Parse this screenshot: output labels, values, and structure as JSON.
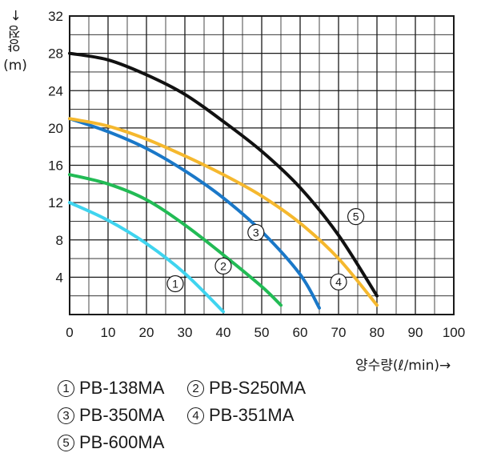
{
  "chart_data": {
    "type": "line",
    "xlabel": "양수량(ℓ/min)→",
    "ylabel_main": "양정 ←",
    "ylabel_unit": "(m)",
    "xlim": [
      0,
      100
    ],
    "ylim": [
      0,
      32
    ],
    "x_ticks": [
      "0",
      "10",
      "20",
      "30",
      "40",
      "50",
      "60",
      "70",
      "80",
      "90",
      "100"
    ],
    "y_ticks": [
      "4",
      "8",
      "12",
      "16",
      "20",
      "24",
      "28",
      "32"
    ],
    "grid": true,
    "series": [
      {
        "name": "PB-138MA",
        "marker": "1",
        "color": "#3fd4ef",
        "x": [
          0,
          10,
          20,
          30,
          40
        ],
        "y": [
          12,
          10.1,
          7.6,
          4.4,
          0.3
        ]
      },
      {
        "name": "PB-S250MA",
        "marker": "2",
        "color": "#22bb55",
        "x": [
          0,
          10,
          20,
          30,
          40,
          50,
          55
        ],
        "y": [
          15,
          14,
          12.3,
          9.6,
          6.4,
          3.0,
          1.0
        ]
      },
      {
        "name": "PB-350MA",
        "marker": "3",
        "color": "#1a78c8",
        "x": [
          0,
          10,
          20,
          30,
          40,
          50,
          60,
          65
        ],
        "y": [
          21,
          19.6,
          17.8,
          15.4,
          12.5,
          8.9,
          4.3,
          0.7
        ]
      },
      {
        "name": "PB-351MA",
        "marker": "4",
        "color": "#f5b82e",
        "x": [
          0,
          10,
          20,
          30,
          40,
          50,
          60,
          70,
          80
        ],
        "y": [
          21,
          20.2,
          18.8,
          17.0,
          15.0,
          12.7,
          9.8,
          6.0,
          1.0
        ]
      },
      {
        "name": "PB-600MA",
        "marker": "5",
        "color": "#111111",
        "x": [
          0,
          10,
          20,
          30,
          40,
          50,
          60,
          70,
          80
        ],
        "y": [
          28,
          27.3,
          25.7,
          23.6,
          20.7,
          17.5,
          13.6,
          8.5,
          2.0
        ]
      }
    ],
    "markers": [
      {
        "label": "1",
        "x": 27.5,
        "y": 3.3
      },
      {
        "label": "2",
        "x": 40,
        "y": 5.2
      },
      {
        "label": "3",
        "x": 48.5,
        "y": 8.8
      },
      {
        "label": "4",
        "x": 70,
        "y": 3.5
      },
      {
        "label": "5",
        "x": 74.5,
        "y": 10.5
      }
    ]
  },
  "legend": [
    {
      "num": "1",
      "label": "PB-138MA"
    },
    {
      "num": "2",
      "label": "PB-S250MA"
    },
    {
      "num": "3",
      "label": "PB-350MA"
    },
    {
      "num": "4",
      "label": "PB-351MA"
    },
    {
      "num": "5",
      "label": "PB-600MA"
    }
  ]
}
